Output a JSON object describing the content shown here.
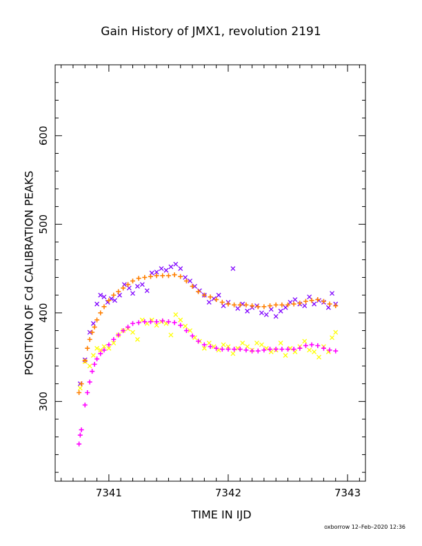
{
  "chart_data": {
    "type": "scatter",
    "title": "Gain History of JMX1, revolution 2191",
    "xlabel": "TIME IN IJD",
    "ylabel": "POSITION OF Cd CALIBRATION PEAKS",
    "xlim": [
      7340.55,
      7343.15
    ],
    "ylim": [
      210,
      680
    ],
    "xticks": [
      7341,
      7342,
      7343
    ],
    "yticks": [
      300,
      400,
      500,
      600
    ],
    "grid": false,
    "legend": "none",
    "series": [
      {
        "color": "#7f00ff",
        "marker": "x",
        "x": [
          7340.76,
          7340.8,
          7340.84,
          7340.87,
          7340.9,
          7340.93,
          7340.96,
          7340.99,
          7341.02,
          7341.05,
          7341.09,
          7341.13,
          7341.17,
          7341.2,
          7341.24,
          7341.28,
          7341.32,
          7341.36,
          7341.4,
          7341.44,
          7341.48,
          7341.52,
          7341.56,
          7341.6,
          7341.64,
          7341.68,
          7341.72,
          7341.76,
          7341.8,
          7341.84,
          7341.88,
          7341.92,
          7341.96,
          7342.0,
          7342.04,
          7342.08,
          7342.12,
          7342.16,
          7342.2,
          7342.24,
          7342.28,
          7342.32,
          7342.36,
          7342.4,
          7342.44,
          7342.48,
          7342.52,
          7342.56,
          7342.6,
          7342.64,
          7342.68,
          7342.72,
          7342.76,
          7342.8,
          7342.84,
          7342.87,
          7342.9
        ],
        "y": [
          320,
          347,
          378,
          388,
          410,
          420,
          418,
          412,
          416,
          414,
          420,
          432,
          428,
          422,
          430,
          432,
          425,
          445,
          446,
          450,
          448,
          452,
          455,
          450,
          440,
          436,
          430,
          425,
          420,
          412,
          416,
          420,
          408,
          412,
          450,
          405,
          410,
          402,
          406,
          408,
          400,
          398,
          404,
          396,
          402,
          406,
          412,
          415,
          410,
          408,
          418,
          410,
          414,
          412,
          406,
          422,
          410
        ]
      },
      {
        "color": "#ffff00",
        "marker": "x",
        "x": [
          7340.76,
          7340.8,
          7340.84,
          7340.87,
          7340.9,
          7340.93,
          7340.96,
          7341.0,
          7341.04,
          7341.08,
          7341.12,
          7341.16,
          7341.2,
          7341.24,
          7341.28,
          7341.32,
          7341.36,
          7341.4,
          7341.44,
          7341.48,
          7341.52,
          7341.56,
          7341.6,
          7341.64,
          7341.68,
          7341.72,
          7341.76,
          7341.8,
          7341.84,
          7341.88,
          7341.92,
          7341.96,
          7342.0,
          7342.04,
          7342.08,
          7342.12,
          7342.16,
          7342.2,
          7342.24,
          7342.28,
          7342.32,
          7342.36,
          7342.4,
          7342.44,
          7342.48,
          7342.52,
          7342.56,
          7342.6,
          7342.64,
          7342.68,
          7342.72,
          7342.76,
          7342.8,
          7342.84,
          7342.87,
          7342.9
        ],
        "y": [
          315,
          345,
          340,
          352,
          360,
          358,
          362,
          360,
          366,
          375,
          380,
          382,
          378,
          370,
          392,
          388,
          392,
          386,
          390,
          388,
          375,
          398,
          392,
          385,
          380,
          372,
          368,
          360,
          366,
          362,
          358,
          364,
          362,
          354,
          360,
          366,
          362,
          358,
          366,
          364,
          360,
          356,
          358,
          366,
          352,
          360,
          356,
          362,
          368,
          358,
          356,
          350,
          362,
          356,
          372,
          378
        ]
      },
      {
        "color": "#ff00ff",
        "marker": "+",
        "x": [
          7340.75,
          7340.76,
          7340.77,
          7340.8,
          7340.82,
          7340.84,
          7340.86,
          7340.88,
          7340.9,
          7340.93,
          7340.96,
          7341.0,
          7341.04,
          7341.08,
          7341.12,
          7341.16,
          7341.2,
          7341.25,
          7341.3,
          7341.35,
          7341.4,
          7341.45,
          7341.5,
          7341.55,
          7341.6,
          7341.65,
          7341.7,
          7341.75,
          7341.8,
          7341.85,
          7341.9,
          7341.95,
          7342.0,
          7342.05,
          7342.1,
          7342.15,
          7342.2,
          7342.25,
          7342.3,
          7342.35,
          7342.4,
          7342.45,
          7342.5,
          7342.55,
          7342.6,
          7342.65,
          7342.7,
          7342.75,
          7342.8,
          7342.85,
          7342.9
        ],
        "y": [
          252,
          262,
          268,
          296,
          310,
          322,
          334,
          342,
          348,
          354,
          358,
          364,
          370,
          375,
          380,
          384,
          388,
          389,
          390,
          390,
          390,
          391,
          390,
          389,
          386,
          380,
          374,
          368,
          364,
          362,
          360,
          359,
          359,
          359,
          359,
          358,
          357,
          357,
          358,
          359,
          359,
          359,
          359,
          359,
          360,
          363,
          364,
          363,
          360,
          358,
          357
        ]
      },
      {
        "color": "#ff7f00",
        "marker": "+",
        "x": [
          7340.75,
          7340.77,
          7340.8,
          7340.82,
          7340.84,
          7340.86,
          7340.88,
          7340.9,
          7340.93,
          7340.96,
          7341.0,
          7341.04,
          7341.08,
          7341.12,
          7341.16,
          7341.2,
          7341.25,
          7341.3,
          7341.35,
          7341.4,
          7341.45,
          7341.5,
          7341.55,
          7341.6,
          7341.65,
          7341.7,
          7341.75,
          7341.8,
          7341.85,
          7341.9,
          7341.95,
          7342.0,
          7342.05,
          7342.1,
          7342.15,
          7342.2,
          7342.25,
          7342.3,
          7342.35,
          7342.4,
          7342.45,
          7342.5,
          7342.55,
          7342.6,
          7342.65,
          7342.7,
          7342.75,
          7342.8,
          7342.85,
          7342.9
        ],
        "y": [
          310,
          320,
          346,
          360,
          370,
          378,
          384,
          392,
          400,
          407,
          414,
          420,
          424,
          428,
          432,
          436,
          439,
          440,
          441,
          442,
          442,
          442,
          443,
          441,
          436,
          430,
          424,
          420,
          418,
          415,
          412,
          410,
          409,
          409,
          409,
          408,
          407,
          407,
          408,
          409,
          409,
          409,
          410,
          411,
          413,
          414,
          415,
          413,
          410,
          408
        ]
      }
    ]
  },
  "footer": "oxborrow 12–Feb–2020 12:36"
}
